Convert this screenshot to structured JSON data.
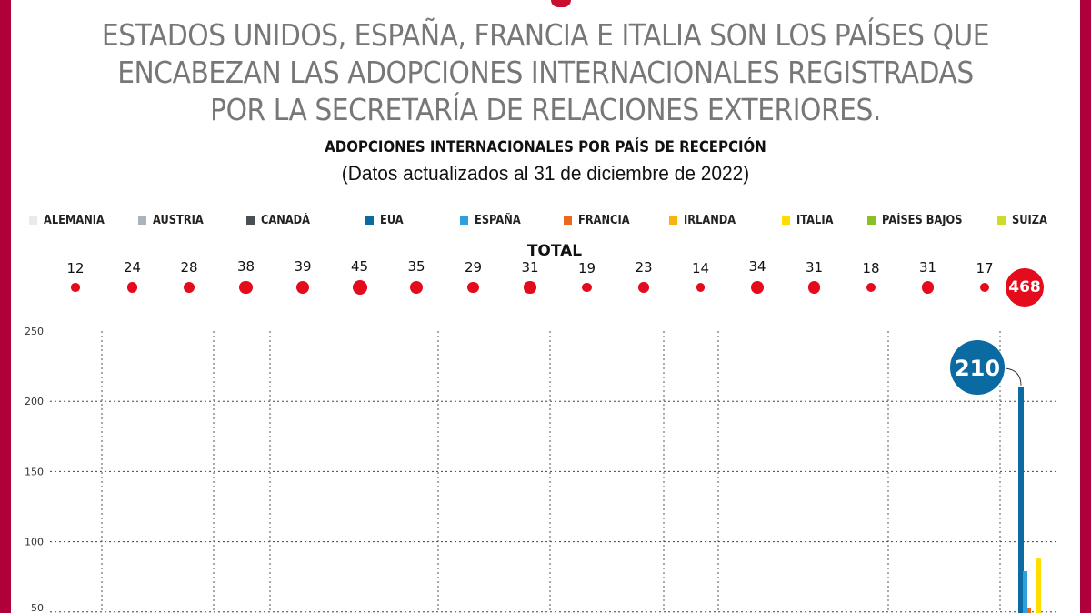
{
  "headline": "ESTADOS UNIDOS, ESPAÑA, FRANCIA E ITALIA SON LOS PAÍSES QUE ENCABEZAN LAS ADOPCIONES INTERNACIONALES REGISTRADAS POR LA SECRETARÍA DE RELACIONES EXTERIORES.",
  "colors": {
    "border": "#b0003a",
    "total_dot": "#e30b1c"
  },
  "chart_data": {
    "type": "bar",
    "title": "ADOPCIONES INTERNACIONALES POR PAÍS DE RECEPCIÓN",
    "subtitle": "(Datos actualizados al 31 de diciembre de 2022)",
    "legend": [
      {
        "name": "ALEMANIA",
        "color": "#e8eaec"
      },
      {
        "name": "AUSTRIA",
        "color": "#a7b4c0"
      },
      {
        "name": "CANADÁ",
        "color": "#4a4f54"
      },
      {
        "name": "EUA",
        "color": "#0a6aa1"
      },
      {
        "name": "ESPAÑA",
        "color": "#2fa0dc"
      },
      {
        "name": "FRANCIA",
        "color": "#e8681c"
      },
      {
        "name": "IRLANDA",
        "color": "#f6b40e"
      },
      {
        "name": "ITALIA",
        "color": "#ffdd00"
      },
      {
        "name": "PAÍSES BAJOS",
        "color": "#8cbf26"
      },
      {
        "name": "SUIZA",
        "color": "#cddc29"
      }
    ],
    "legend_position": "top",
    "total_label": "TOTAL",
    "totals": [
      12,
      24,
      28,
      38,
      39,
      45,
      35,
      29,
      31,
      19,
      23,
      14,
      34,
      31,
      18,
      31,
      17
    ],
    "grand_total": "468",
    "yticks": [
      250,
      200,
      150,
      100,
      50
    ],
    "ylim": [
      0,
      250
    ],
    "grid": true,
    "visible_bars": [
      {
        "name": "EUA",
        "value": 210
      },
      {
        "name": "ESPAÑA",
        "value": 79
      },
      {
        "name": "FRANCIA",
        "value": 53
      },
      {
        "name": "ITALIA",
        "value": 88
      }
    ],
    "callout": "210"
  }
}
